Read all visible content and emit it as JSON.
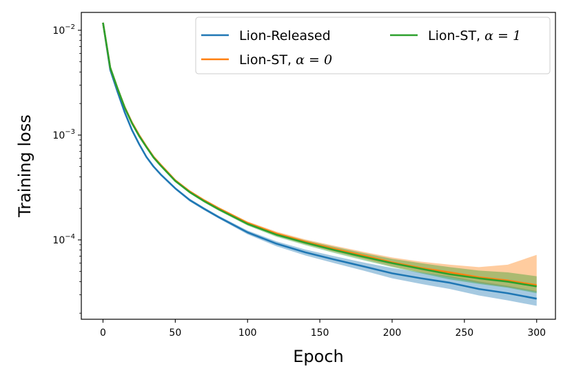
{
  "chart_data": {
    "type": "line",
    "xlabel": "Epoch",
    "ylabel": "Training loss",
    "xlim": [
      -15,
      313
    ],
    "ylim": [
      1.75e-05,
      0.0148
    ],
    "yscale": "log",
    "xticks": [
      0,
      50,
      100,
      150,
      200,
      250,
      300
    ],
    "xtick_labels": [
      "0",
      "50",
      "100",
      "150",
      "200",
      "250",
      "300"
    ],
    "yticks": [
      0.01,
      0.001,
      0.0001
    ],
    "ytick_labels": [
      {
        "base": "10",
        "exp": "−2"
      },
      {
        "base": "10",
        "exp": "−3"
      },
      {
        "base": "10",
        "exp": "−4"
      }
    ],
    "grid": false,
    "legend": {
      "position": "top-right",
      "ncol": 2
    },
    "series": [
      {
        "name": "Lion-Released",
        "name_math": "",
        "color": "#1f77b4",
        "x": [
          0,
          5,
          10,
          15,
          20,
          25,
          30,
          35,
          40,
          50,
          60,
          70,
          80,
          100,
          120,
          140,
          160,
          180,
          200,
          220,
          240,
          260,
          280,
          300
        ],
        "y": [
          0.0118,
          0.0042,
          0.0026,
          0.00165,
          0.00112,
          0.00082,
          0.00062,
          0.0005,
          0.00042,
          0.00031,
          0.00024,
          0.000198,
          0.000165,
          0.000118,
          9.2e-05,
          7.6e-05,
          6.5e-05,
          5.6e-05,
          4.8e-05,
          4.3e-05,
          3.9e-05,
          3.4e-05,
          3.1e-05,
          2.75e-05
        ],
        "band_low": [
          0.0117,
          0.00415,
          0.00256,
          0.00162,
          0.0011,
          0.0008,
          0.00061,
          0.00049,
          0.00041,
          0.000302,
          0.000233,
          0.000192,
          0.00016,
          0.000113,
          8.7e-05,
          7.1e-05,
          6e-05,
          5.1e-05,
          4.3e-05,
          3.8e-05,
          3.4e-05,
          2.95e-05,
          2.65e-05,
          2.35e-05
        ],
        "band_high": [
          0.0119,
          0.00425,
          0.00264,
          0.00168,
          0.00114,
          0.00084,
          0.00063,
          0.00051,
          0.00043,
          0.000318,
          0.000247,
          0.000204,
          0.00017,
          0.000123,
          9.7e-05,
          8.1e-05,
          7e-05,
          6.1e-05,
          5.4e-05,
          4.9e-05,
          4.5e-05,
          4e-05,
          3.65e-05,
          3.25e-05
        ]
      },
      {
        "name": "Lion-ST, ",
        "name_math": "α = 0",
        "color": "#ff7f0e",
        "x": [
          0,
          5,
          10,
          15,
          20,
          25,
          30,
          35,
          40,
          50,
          60,
          70,
          80,
          100,
          120,
          140,
          160,
          180,
          200,
          220,
          240,
          260,
          280,
          300
        ],
        "y": [
          0.0118,
          0.0044,
          0.0028,
          0.00185,
          0.00132,
          0.001,
          0.00078,
          0.00062,
          0.00052,
          0.00037,
          0.00029,
          0.000238,
          0.0002,
          0.000145,
          0.000115,
          9.6e-05,
          8.2e-05,
          7.1e-05,
          6.1e-05,
          5.4e-05,
          4.9e-05,
          4.4e-05,
          4.1e-05,
          3.7e-05
        ],
        "band_low": [
          0.0117,
          0.00435,
          0.00276,
          0.00182,
          0.0013,
          0.00098,
          0.00077,
          0.00061,
          0.00051,
          0.000362,
          0.000283,
          0.000231,
          0.000194,
          0.00014,
          0.00011,
          9.1e-05,
          7.7e-05,
          6.6e-05,
          5.6e-05,
          4.9e-05,
          4.4e-05,
          3.9e-05,
          3.55e-05,
          3.2e-05
        ],
        "band_high": [
          0.0119,
          0.00445,
          0.00284,
          0.00188,
          0.00134,
          0.00102,
          0.00079,
          0.00063,
          0.00053,
          0.000378,
          0.000297,
          0.000245,
          0.000206,
          0.00015,
          0.00012,
          0.000101,
          8.8e-05,
          7.7e-05,
          6.8e-05,
          6.2e-05,
          5.8e-05,
          5.5e-05,
          5.8e-05,
          7.2e-05
        ]
      },
      {
        "name": "Lion-ST, ",
        "name_math": "α = 1",
        "color": "#2ca02c",
        "x": [
          0,
          5,
          10,
          15,
          20,
          25,
          30,
          35,
          40,
          50,
          60,
          70,
          80,
          100,
          120,
          140,
          160,
          180,
          200,
          220,
          240,
          260,
          280,
          300
        ],
        "y": [
          0.0118,
          0.0044,
          0.0028,
          0.00183,
          0.0013,
          0.00098,
          0.00077,
          0.00061,
          0.00051,
          0.000365,
          0.000285,
          0.000234,
          0.000196,
          0.000142,
          0.000112,
          9.4e-05,
          8e-05,
          6.9e-05,
          6e-05,
          5.3e-05,
          4.7e-05,
          4.3e-05,
          4e-05,
          3.6e-05
        ],
        "band_low": [
          0.0117,
          0.00435,
          0.00276,
          0.0018,
          0.00128,
          0.00096,
          0.00076,
          0.0006,
          0.0005,
          0.000357,
          0.000278,
          0.000227,
          0.00019,
          0.000137,
          0.000107,
          8.9e-05,
          7.5e-05,
          6.4e-05,
          5.5e-05,
          4.8e-05,
          4.2e-05,
          3.8e-05,
          3.5e-05,
          3.1e-05
        ],
        "band_high": [
          0.0119,
          0.00445,
          0.00284,
          0.00186,
          0.00132,
          0.001,
          0.00078,
          0.00062,
          0.00052,
          0.000373,
          0.000292,
          0.000241,
          0.000202,
          0.000147,
          0.000117,
          9.9e-05,
          8.6e-05,
          7.5e-05,
          6.6e-05,
          6e-05,
          5.5e-05,
          5.1e-05,
          4.9e-05,
          4.5e-05
        ]
      }
    ]
  }
}
